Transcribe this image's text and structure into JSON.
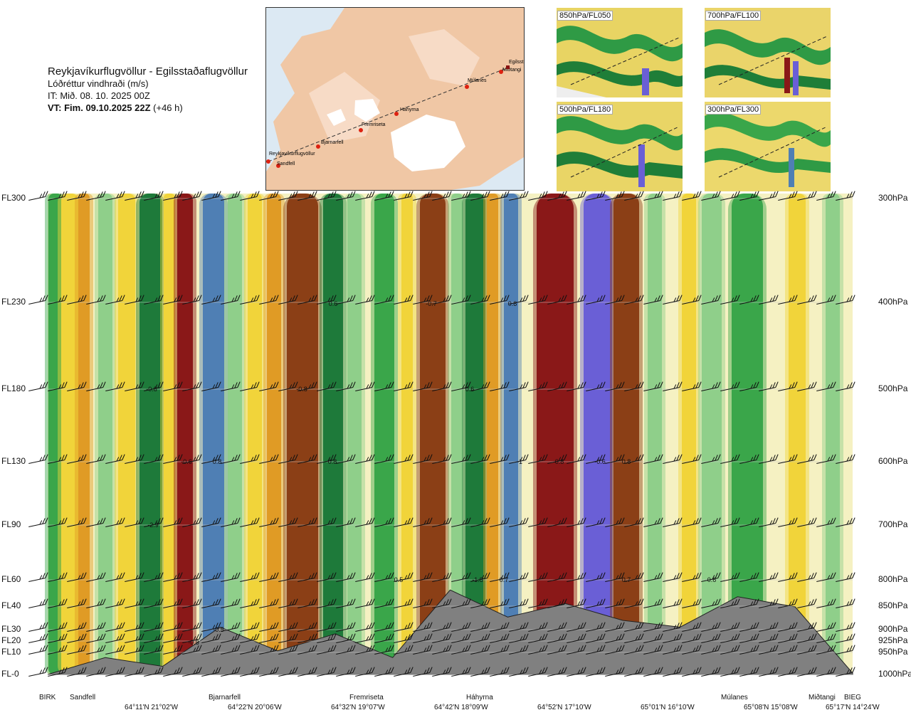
{
  "header": {
    "route": "Reykjavíkurflugvöllur - Egilsstaðaflugvöllur",
    "variable": "Lóðréttur vindhraði (m/s)",
    "it": "IT: Mið. 08. 10. 2025 00Z",
    "vt_bold": "VT: Fim. 09.10.2025 22Z",
    "vt_lead": " (+46 h)"
  },
  "map": {
    "places": [
      {
        "name": "Reykjavíkurflugvöllur"
      },
      {
        "name": "Sandfell"
      },
      {
        "name": "Bjarnarfell"
      },
      {
        "name": "Fremriseta"
      },
      {
        "name": "Háhyrna"
      },
      {
        "name": "Múlanes"
      },
      {
        "name": "Miðtangi"
      },
      {
        "name": "Egilsst"
      }
    ]
  },
  "thumbnails": [
    {
      "label": "850hPa/FL050"
    },
    {
      "label": "700hPa/FL100"
    },
    {
      "label": "500hPa/FL180"
    },
    {
      "label": "300hPa/FL300"
    }
  ],
  "levels": {
    "left": [
      "FL300",
      "FL230",
      "FL180",
      "FL130",
      "FL90",
      "FL60",
      "FL40",
      "FL30",
      "FL20",
      "FL10",
      "FL-0"
    ],
    "right": [
      "300hPa",
      "400hPa",
      "500hPa",
      "600hPa",
      "700hPa",
      "800hPa",
      "850hPa",
      "900hPa",
      "925hPa",
      "950hPa",
      "1000hPa"
    ]
  },
  "waypoints": [
    "BIRK",
    "Sandfell",
    "Bjarnarfell",
    "Fremriseta",
    "Háhyrna",
    "Múlanes",
    "Miðtangi",
    "BIEG"
  ],
  "coords": [
    "64°11'N 21°02'W",
    "64°22'N 20°06'W",
    "64°32'N 19°07'W",
    "64°42'N 18°09'W",
    "64°52'N 17°10'W",
    "65°01'N 16°10'W",
    "65°08'N 15°08'W",
    "65°17'N 14°24'W"
  ],
  "chart_data": {
    "type": "heatmap",
    "variable": "vertical wind speed (m/s)",
    "x_stations": [
      "BIRK",
      "Sandfell",
      "Bjarnarfell",
      "Fremriseta",
      "Háhyrna",
      "Múlanes",
      "Miðtangi",
      "BIEG"
    ],
    "y_levels_hpa": [
      300,
      400,
      500,
      600,
      700,
      800,
      850,
      900,
      925,
      950,
      1000
    ],
    "colors": {
      "strong_up": "#6a5fd6",
      "up_blue": "#4f7fb4",
      "up_darkgreen": "#1e7a3a",
      "up_green": "#3aa64a",
      "up_light": "#8fcf8a",
      "neutral": "#f5f1c2",
      "down_yellow": "#f1d43a",
      "down_orange": "#e09b25",
      "down_brown": "#8b3f16",
      "down_red": "#8a1818",
      "terrain": "#808080"
    },
    "contour_labels": [
      {
        "text": "-0.8"
      },
      {
        "text": "-0.8"
      },
      {
        "text": "-0.7"
      },
      {
        "text": "0.6"
      },
      {
        "text": "0.8"
      },
      {
        "text": "0.6"
      },
      {
        "text": "0.8"
      },
      {
        "text": "0.8"
      },
      {
        "text": "-0.6"
      },
      {
        "text": "-1"
      },
      {
        "text": "0.8"
      },
      {
        "text": "-0.6"
      },
      {
        "text": "0.8"
      },
      {
        "text": "-2.9"
      },
      {
        "text": "-1.8"
      },
      {
        "text": "0.7"
      },
      {
        "text": "0.7"
      },
      {
        "text": "-0.8"
      },
      {
        "text": "-0.5"
      },
      {
        "text": "0.5"
      },
      {
        "text": "0.6"
      }
    ],
    "terrain_profile_m": [
      0,
      250,
      120,
      700,
      350,
      600,
      250,
      1250,
      850,
      1050,
      800,
      700,
      1150,
      1000,
      20
    ]
  }
}
